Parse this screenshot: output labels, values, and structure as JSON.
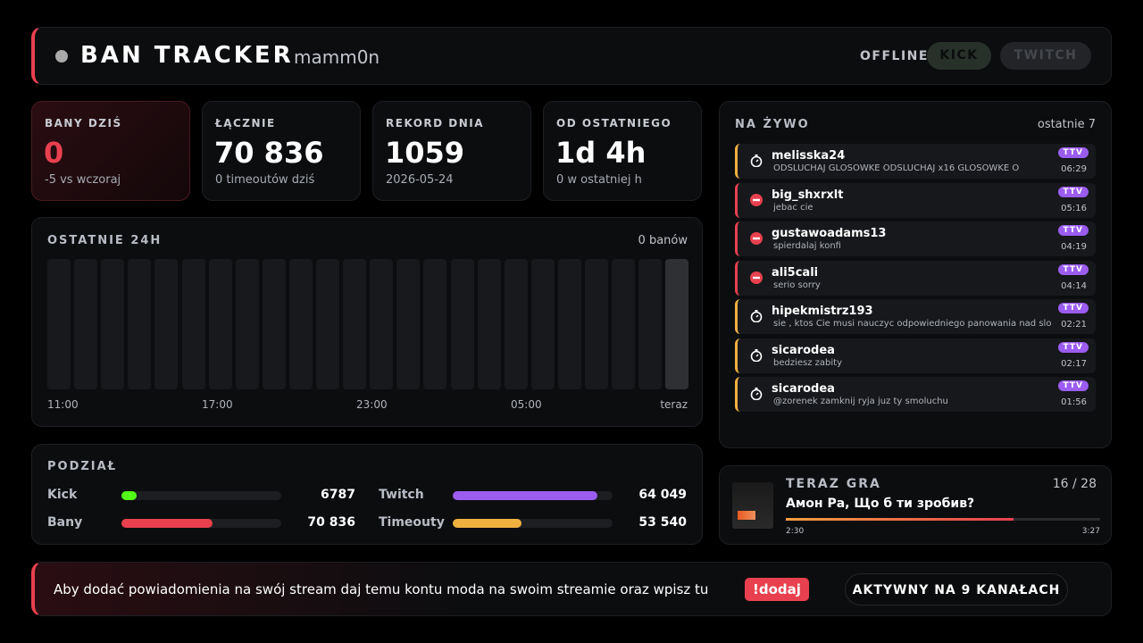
{
  "header": {
    "title": "BAN TRACKER",
    "channel": "mamm0n",
    "status": "OFFLINE",
    "platforms": [
      "KICK",
      "TWITCH"
    ]
  },
  "stats": [
    {
      "label": "BANY DZIŚ",
      "value": "0",
      "sub": "-5 vs wczoraj"
    },
    {
      "label": "ŁĄCZNIE",
      "value": "70 836",
      "sub": "0 timeoutów dziś"
    },
    {
      "label": "REKORD DNIA",
      "value": "1059",
      "sub": "2026-05-24"
    },
    {
      "label": "OD OSTATNIEGO",
      "value": "1d 4h",
      "sub": "0 w ostatniej h"
    }
  ],
  "last24h": {
    "title": "OSTATNIE 24H",
    "summary": "0 banów",
    "axis": [
      "11:00",
      "17:00",
      "23:00",
      "05:00",
      "teraz"
    ]
  },
  "split": {
    "title": "PODZIAŁ",
    "items": [
      {
        "label": "Kick",
        "value": "6787",
        "color": "#53fc18"
      },
      {
        "label": "Twitch",
        "value": "64 049",
        "color": "#9b5cf0"
      },
      {
        "label": "Bany",
        "value": "70 836",
        "color": "#e8404e"
      },
      {
        "label": "Timeouty",
        "value": "53 540",
        "color": "#f0b040"
      }
    ]
  },
  "live": {
    "title": "NA ŻYWO",
    "subtitle": "ostatnie 7",
    "events": [
      {
        "kind": "timeout",
        "user": "melisska24",
        "message": "ODSLUCHAJ GLOSOWKE ODSLUCHAJ x16 GLOSOWKE O",
        "platform": "TTV",
        "time": "06:29"
      },
      {
        "kind": "ban",
        "user": "big_shxrxlt",
        "message": "jebac cie",
        "platform": "TTV",
        "time": "05:16"
      },
      {
        "kind": "ban",
        "user": "gustawoadams13",
        "message": "spierdalaj konfi",
        "platform": "TTV",
        "time": "04:19"
      },
      {
        "kind": "ban",
        "user": "ali5cali",
        "message": "serio sorry",
        "platform": "TTV",
        "time": "04:14"
      },
      {
        "kind": "timeout",
        "user": "hipekmistrz193",
        "message": "sie , ktos Cie musi nauczyc odpowiedniego panowania nad slowni",
        "platform": "TTV",
        "time": "02:21"
      },
      {
        "kind": "timeout",
        "user": "sicarodea",
        "message": "bedziesz zabity",
        "platform": "TTV",
        "time": "02:17"
      },
      {
        "kind": "timeout",
        "user": "sicarodea",
        "message": "@zorenek zamknij ryja juz ty smoluchu",
        "platform": "TTV",
        "time": "01:56"
      }
    ]
  },
  "now_playing": {
    "title": "TERAZ GRA",
    "position": "16 / 28",
    "track": "Амон Ра, Що б ти зробив?",
    "elapsed": "2:30",
    "duration": "3:27"
  },
  "footer": {
    "message": "Aby dodać powiadomienia na swój stream daj temu kontu moda na swoim streamie oraz wpisz tu",
    "command": "!dodaj",
    "status": "AKTYWNY NA 9 KANAŁACH"
  }
}
